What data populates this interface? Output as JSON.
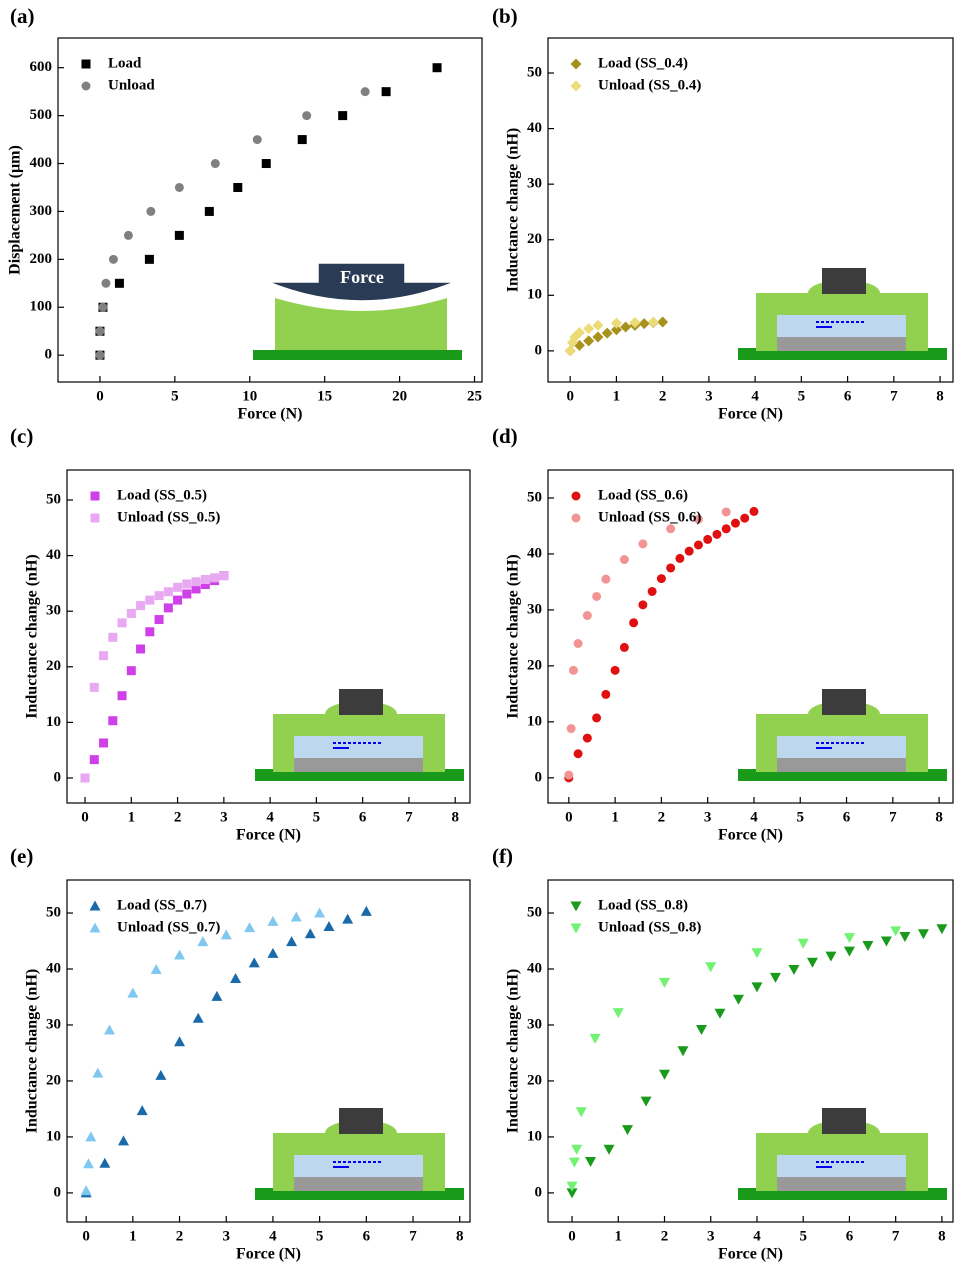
{
  "chart_data": [
    {
      "type": "scatter",
      "label": "(a)",
      "xlabel": "Force (N)",
      "ylabel": "Displacement (µm)",
      "inset_label": "Force",
      "xlim": [
        -2.8,
        25.5
      ],
      "ylim": [
        -56,
        662
      ],
      "xticks": [
        0,
        5,
        10,
        15,
        20,
        25
      ],
      "yticks": [
        0,
        100,
        200,
        300,
        400,
        500,
        600
      ],
      "legend": "upper left",
      "series": [
        {
          "name": "Load",
          "color": "#000000",
          "marker": "square",
          "x": [
            0,
            0,
            0.2,
            1.3,
            3.3,
            5.3,
            7.3,
            9.2,
            11.1,
            13.5,
            16.2,
            19.1,
            22.5
          ],
          "values": [
            0,
            50,
            100,
            150,
            200,
            250,
            300,
            350,
            400,
            450,
            500,
            550,
            600
          ]
        },
        {
          "name": "Unload",
          "color": "#808080",
          "marker": "circle",
          "x": [
            0,
            0,
            0.2,
            0.4,
            0.9,
            1.9,
            3.4,
            5.3,
            7.7,
            10.5,
            13.8,
            17.7
          ],
          "values": [
            0,
            50,
            100,
            150,
            200,
            250,
            300,
            350,
            400,
            450,
            500,
            550
          ]
        }
      ]
    },
    {
      "type": "scatter",
      "label": "(b)",
      "xlabel": "Force (N)",
      "ylabel": "Inductance change (nH)",
      "xlim": [
        -0.48,
        8.28
      ],
      "ylim": [
        -5.6,
        56.3
      ],
      "xticks": [
        0,
        1,
        2,
        3,
        4,
        5,
        6,
        7,
        8
      ],
      "yticks": [
        0,
        10,
        20,
        30,
        40,
        50
      ],
      "legend": "upper left",
      "series": [
        {
          "name": "Load (SS_0.4)",
          "color": "#a8921e",
          "marker": "diamond",
          "x": [
            0,
            0.2,
            0.4,
            0.6,
            0.8,
            1.0,
            1.2,
            1.4,
            1.6,
            1.8,
            2.0
          ],
          "values": [
            0,
            1,
            1.8,
            2.5,
            3.2,
            3.8,
            4.3,
            4.6,
            4.9,
            5.1,
            5.2
          ]
        },
        {
          "name": "Unload (SS_0.4)",
          "color": "#ecdc78",
          "marker": "diamond",
          "x": [
            0,
            0.05,
            0.1,
            0.2,
            0.4,
            0.6,
            1.0,
            1.4,
            1.8
          ],
          "values": [
            0,
            1.5,
            2.5,
            3.3,
            4,
            4.6,
            5,
            5.1,
            5.2
          ]
        }
      ]
    },
    {
      "type": "scatter",
      "label": "(c)",
      "xlabel": "Force (N)",
      "ylabel": "Inductance change (nH)",
      "xlim": [
        -0.39,
        8.32
      ],
      "ylim": [
        -4.5,
        55.4
      ],
      "xticks": [
        0,
        1,
        2,
        3,
        4,
        5,
        6,
        7,
        8
      ],
      "yticks": [
        0,
        10,
        20,
        30,
        40,
        50
      ],
      "legend": "upper left",
      "series": [
        {
          "name": "Load (SS_0.5)",
          "color": "#d040e8",
          "marker": "square",
          "x": [
            0,
            0.2,
            0.4,
            0.6,
            0.8,
            1.0,
            1.2,
            1.4,
            1.6,
            1.8,
            2.0,
            2.2,
            2.4,
            2.6,
            2.8,
            3.0
          ],
          "values": [
            0,
            3.3,
            6.3,
            10.3,
            14.8,
            19.3,
            23.2,
            26.3,
            28.5,
            30.6,
            32,
            33.1,
            34,
            34.8,
            35.5,
            36.4
          ]
        },
        {
          "name": "Unload (SS_0.5)",
          "color": "#e8a8f2",
          "marker": "square",
          "x": [
            0,
            0.2,
            0.4,
            0.6,
            0.8,
            1.0,
            1.2,
            1.4,
            1.6,
            1.8,
            2.0,
            2.2,
            2.4,
            2.6,
            2.8,
            3.0
          ],
          "values": [
            0,
            16.3,
            22,
            25.3,
            27.9,
            29.6,
            31,
            32,
            32.8,
            33.5,
            34.3,
            34.9,
            35.3,
            35.7,
            36,
            36.4
          ]
        }
      ]
    },
    {
      "type": "scatter",
      "label": "(d)",
      "xlabel": "Force (N)",
      "ylabel": "Inductance change (nH)",
      "xlim": [
        -0.45,
        8.3
      ],
      "ylim": [
        -4.5,
        55
      ],
      "xticks": [
        0,
        1,
        2,
        3,
        4,
        5,
        6,
        7,
        8
      ],
      "yticks": [
        0,
        10,
        20,
        30,
        40,
        50
      ],
      "legend": "upper left",
      "series": [
        {
          "name": "Load (SS_0.6)",
          "color": "#e01010",
          "marker": "circle",
          "x": [
            0,
            0.2,
            0.4,
            0.6,
            0.8,
            1.0,
            1.2,
            1.4,
            1.6,
            1.8,
            2.0,
            2.2,
            2.4,
            2.6,
            2.8,
            3.0,
            3.2,
            3.4,
            3.6,
            3.8,
            4.0
          ],
          "values": [
            0,
            4.3,
            7.1,
            10.7,
            14.9,
            19.2,
            23.3,
            27.7,
            30.9,
            33.3,
            35.6,
            37.5,
            39.2,
            40.5,
            41.6,
            42.6,
            43.5,
            44.5,
            45.5,
            46.4,
            47.6
          ]
        },
        {
          "name": "Unload (SS_0.6)",
          "color": "#f39494",
          "marker": "circle",
          "x": [
            0,
            0.05,
            0.1,
            0.2,
            0.4,
            0.6,
            0.8,
            1.2,
            1.6,
            2.2,
            2.8,
            3.4
          ],
          "values": [
            0.5,
            8.8,
            19.2,
            24,
            29,
            32.4,
            35.5,
            39,
            41.8,
            44.5,
            46.2,
            47.5
          ]
        }
      ]
    },
    {
      "type": "scatter",
      "label": "(e)",
      "xlabel": "Force (N)",
      "ylabel": "Inductance change (nH)",
      "xlim": [
        -0.41,
        8.22
      ],
      "ylim": [
        -5.2,
        55.9
      ],
      "xticks": [
        0,
        1,
        2,
        3,
        4,
        5,
        6,
        7,
        8
      ],
      "yticks": [
        0,
        10,
        20,
        30,
        40,
        50
      ],
      "legend": "upper left",
      "series": [
        {
          "name": "Load (SS_0.7)",
          "color": "#1a6aaa",
          "marker": "triangle-up",
          "x": [
            0,
            0.4,
            0.8,
            1.2,
            1.6,
            2.0,
            2.4,
            2.8,
            3.2,
            3.6,
            4.0,
            4.4,
            4.8,
            5.2,
            5.6,
            6.0
          ],
          "values": [
            0,
            5.3,
            9.3,
            14.7,
            21,
            27,
            31.2,
            35.1,
            38.3,
            41.1,
            42.8,
            44.9,
            46.3,
            47.6,
            48.9,
            50.3
          ]
        },
        {
          "name": "Unload (SS_0.7)",
          "color": "#80c8f0",
          "marker": "triangle-up",
          "x": [
            0,
            0.05,
            0.1,
            0.25,
            0.5,
            1.0,
            1.5,
            2.0,
            2.5,
            3.0,
            3.5,
            4.0,
            4.5,
            5.0
          ],
          "values": [
            0.4,
            5.2,
            10,
            21.4,
            29.1,
            35.7,
            39.9,
            42.5,
            44.9,
            46.1,
            47.4,
            48.5,
            49.3,
            50
          ]
        }
      ]
    },
    {
      "type": "scatter",
      "label": "(f)",
      "xlabel": "Force (N)",
      "ylabel": "Inductance change (nH)",
      "xlim": [
        -0.52,
        8.24
      ],
      "ylim": [
        -5.2,
        55.9
      ],
      "xticks": [
        0,
        1,
        2,
        3,
        4,
        5,
        6,
        7,
        8
      ],
      "yticks": [
        0,
        10,
        20,
        30,
        40,
        50
      ],
      "legend": "upper left",
      "series": [
        {
          "name": "Load (SS_0.8)",
          "color": "#1a9a1a",
          "marker": "triangle-down",
          "x": [
            0,
            0.4,
            0.8,
            1.2,
            1.6,
            2.0,
            2.4,
            2.8,
            3.2,
            3.6,
            4.0,
            4.4,
            4.8,
            5.2,
            5.6,
            6.0,
            6.4,
            6.8,
            7.2,
            7.6,
            8.0
          ],
          "values": [
            0,
            5.6,
            7.8,
            11.3,
            16.4,
            21.2,
            25.4,
            29.2,
            32.1,
            34.6,
            36.8,
            38.5,
            39.9,
            41.2,
            42.3,
            43.2,
            44.2,
            45,
            45.8,
            46.3,
            47.2
          ]
        },
        {
          "name": "Unload (SS_0.8)",
          "color": "#72f272",
          "marker": "triangle-down",
          "x": [
            0,
            0.05,
            0.1,
            0.2,
            0.5,
            1.0,
            2.0,
            3.0,
            4.0,
            5.0,
            6.0,
            7.0
          ],
          "values": [
            1.2,
            5.5,
            7.8,
            14.5,
            27.6,
            32.2,
            37.6,
            40.4,
            42.9,
            44.6,
            45.6,
            46.8
          ]
        }
      ]
    }
  ]
}
